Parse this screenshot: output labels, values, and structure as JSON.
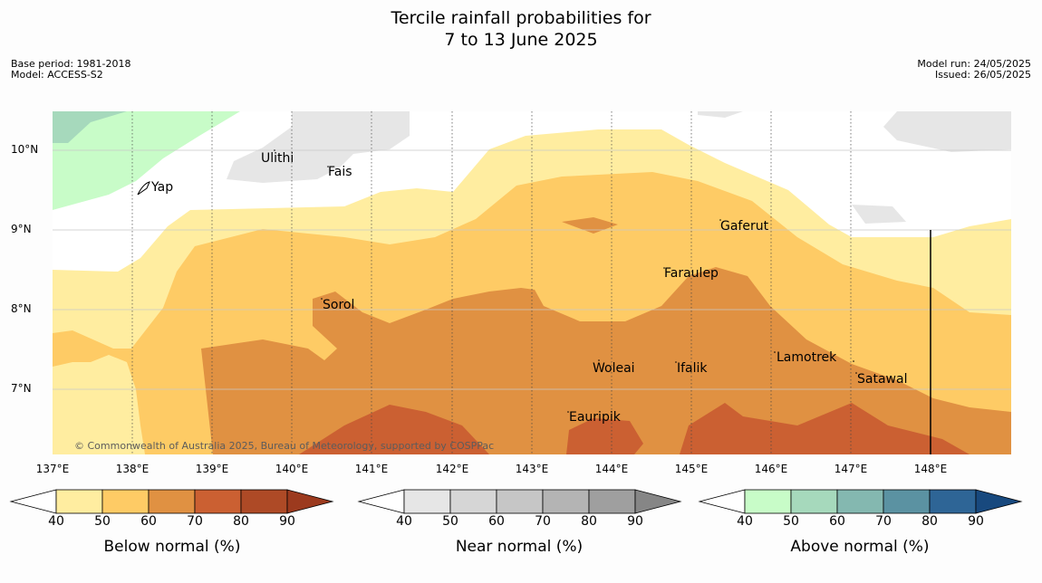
{
  "title": {
    "line1": "Tercile rainfall probabilities for",
    "line2": "7 to 13 June 2025"
  },
  "meta": {
    "base_period": "Base period: 1981-2018",
    "model": "Model: ACCESS-S2",
    "model_run": "Model run: 24/05/2025",
    "issued": "Issued: 26/05/2025"
  },
  "map": {
    "lon_labels": [
      "137°E",
      "138°E",
      "139°E",
      "140°E",
      "141°E",
      "142°E",
      "143°E",
      "144°E",
      "145°E",
      "146°E",
      "147°E",
      "148°E"
    ],
    "lat_labels": [
      "10°N",
      "9°N",
      "8°N",
      "7°N"
    ],
    "places": [
      "Ulithi",
      "Fais",
      "Yap",
      "Gaferut",
      "Faraulep",
      "Sorol",
      "Woleai",
      "Ifalik",
      "Lamotrek",
      "Satawal",
      "Eauripik"
    ],
    "copyright": "© Commonwealth of Australia 2025, Bureau of Meteorology, supported by COSPPac"
  },
  "colorbars": [
    {
      "title": "Below normal (%)",
      "ticks": [
        "40",
        "50",
        "60",
        "70",
        "80",
        "90"
      ],
      "colors": [
        "#ffeda0",
        "#fecb65",
        "#e09142",
        "#cb6032",
        "#ae4a26",
        "#9c3a1e"
      ]
    },
    {
      "title": "Near normal (%)",
      "ticks": [
        "40",
        "50",
        "60",
        "70",
        "80",
        "90"
      ],
      "colors": [
        "#e6e6e6",
        "#d6d6d6",
        "#c6c6c6",
        "#b4b4b4",
        "#9f9f9f",
        "#868686"
      ]
    },
    {
      "title": "Above normal (%)",
      "ticks": [
        "40",
        "50",
        "60",
        "70",
        "80",
        "90"
      ],
      "colors": [
        "#c8fcc8",
        "#a6d9bc",
        "#84b8b0",
        "#5b92a2",
        "#2e6596",
        "#18497e"
      ]
    }
  ]
}
